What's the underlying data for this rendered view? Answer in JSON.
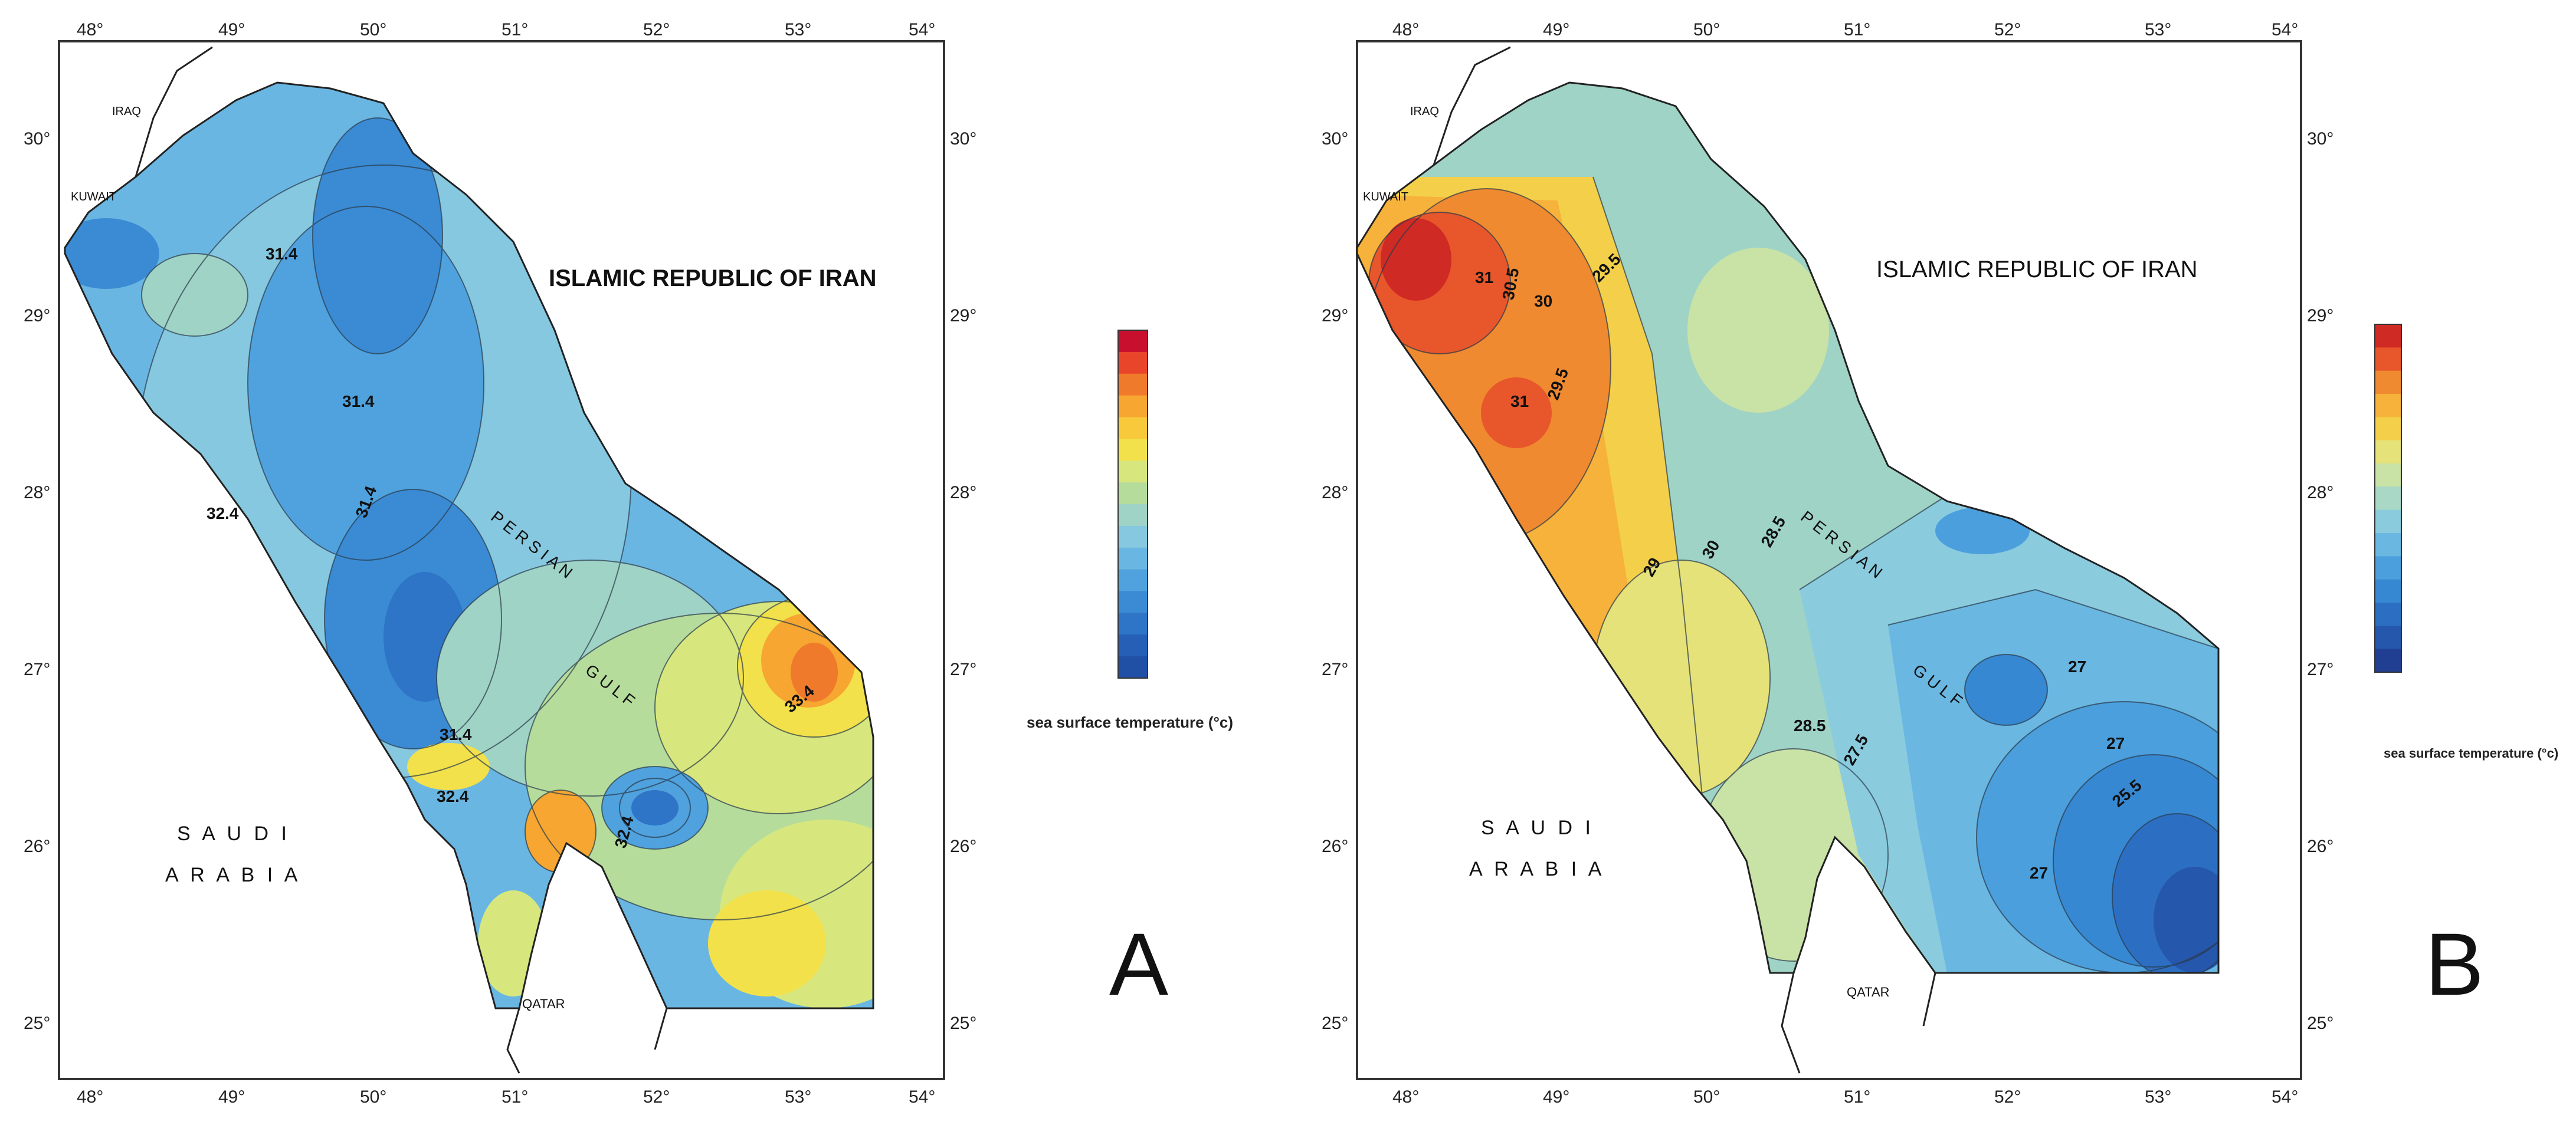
{
  "panels": [
    {
      "id": "A",
      "letter": "A",
      "country_iran": "ISLAMIC  REPUBLIC OF IRAN",
      "country_saudi_line1": "S A U D I",
      "country_saudi_line2": "A R A B I A",
      "place_qatar": "QATAR",
      "place_kuwait": "KUWAIT",
      "place_iraq": "IRAQ",
      "gulf_label_1": "P E R S I A N",
      "gulf_label_2": "G U L F",
      "lon_ticks": [
        "48°",
        "49°",
        "50°",
        "51°",
        "52°",
        "53°",
        "54°"
      ],
      "lat_ticks": [
        "30°",
        "29°",
        "28°",
        "27°",
        "26°",
        "25°"
      ],
      "contour_labels": [
        "31.4",
        "31.4",
        "31.4",
        "32.4",
        "31.4",
        "32.4",
        "32.4",
        "33.4"
      ],
      "colorbar_title": "sea surface temperature (°c)",
      "colorbar_colors": [
        "#c8102e",
        "#e8452a",
        "#f07a2c",
        "#f6a631",
        "#f8c93a",
        "#f2e14a",
        "#d7e77e",
        "#b6dc9c",
        "#9fd3c6",
        "#86c8df",
        "#6ab6e2",
        "#4fa2de",
        "#3a8bd4",
        "#2e74c7",
        "#265fb6",
        "#2050a5"
      ]
    },
    {
      "id": "B",
      "letter": "B",
      "country_iran": "ISLAMIC  REPUBLIC OF IRAN",
      "country_saudi_line1": "S A U D I",
      "country_saudi_line2": "A R A B I A",
      "place_qatar": "QATAR",
      "place_kuwait": "KUWAIT",
      "place_iraq": "IRAQ",
      "gulf_label_1": "P E R S I A N",
      "gulf_label_2": "G U L F",
      "lon_ticks": [
        "48°",
        "49°",
        "50°",
        "51°",
        "52°",
        "53°",
        "54°"
      ],
      "lat_ticks": [
        "30°",
        "29°",
        "28°",
        "27°",
        "26°",
        "25°"
      ],
      "contour_labels": [
        "31",
        "30.5",
        "30",
        "29.5",
        "31",
        "29.5",
        "29",
        "30",
        "28.5",
        "28.5",
        "27",
        "27.5",
        "27",
        "25.5",
        "27"
      ],
      "colorbar_title": "sea surface temperature (°c)",
      "colorbar_colors": [
        "#d02a24",
        "#e8562b",
        "#f08a30",
        "#f6b23a",
        "#f4d04a",
        "#e6e27a",
        "#c9e2a6",
        "#a9d8c6",
        "#8acbde",
        "#6ab7e2",
        "#4b9fdc",
        "#3788d2",
        "#2c6fc2",
        "#2557ad",
        "#203f92"
      ]
    }
  ]
}
